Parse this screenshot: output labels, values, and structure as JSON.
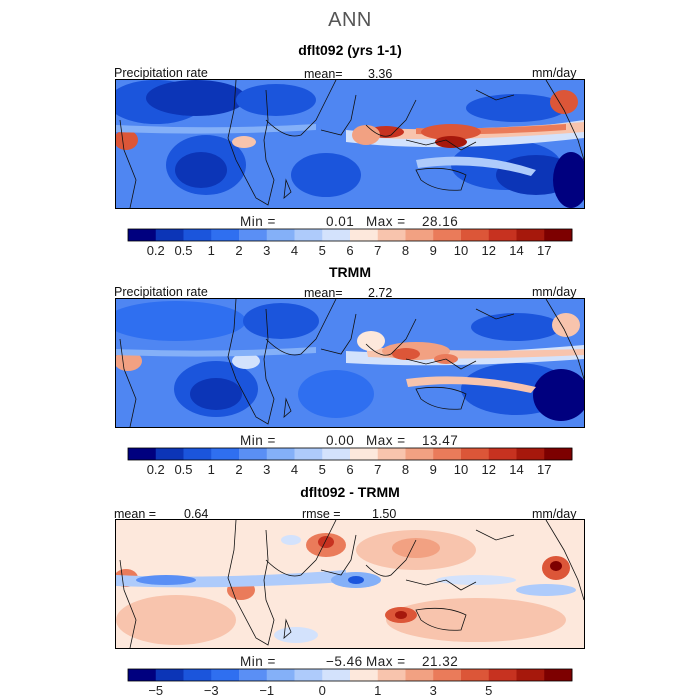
{
  "page": {
    "title": "ANN"
  },
  "panels": [
    {
      "title": "dflt092 (yrs 1-1)",
      "left_label": "Precipitation rate",
      "mid_label": "mean=",
      "mid_value": "3.36",
      "right_label": "mm/day",
      "min_label": "Min =",
      "min_value": "0.01",
      "max_label": "Max =",
      "max_value": "28.16",
      "colorbar": {
        "colors": [
          "#00007f",
          "#0c35b7",
          "#1b55dc",
          "#2f6ff0",
          "#5a8ff5",
          "#84b0f8",
          "#aecbfb",
          "#d3e2fc",
          "#fde8dc",
          "#f8c4ad",
          "#f2a182",
          "#ea7b5a",
          "#dc5638",
          "#c73220",
          "#a6180c",
          "#7d0000"
        ],
        "tick_labels": [
          "0.2",
          "0.5",
          "1",
          "2",
          "3",
          "4",
          "5",
          "6",
          "7",
          "8",
          "9",
          "10",
          "12",
          "14",
          "17"
        ]
      }
    },
    {
      "title": "TRMM",
      "left_label": "Precipitation rate",
      "mid_label": "mean=",
      "mid_value": "2.72",
      "right_label": "mm/day",
      "min_label": "Min =",
      "min_value": "0.00",
      "max_label": "Max =",
      "max_value": "13.47",
      "colorbar": {
        "colors": [
          "#00007f",
          "#0c35b7",
          "#1b55dc",
          "#2f6ff0",
          "#5a8ff5",
          "#84b0f8",
          "#aecbfb",
          "#d3e2fc",
          "#fde8dc",
          "#f8c4ad",
          "#f2a182",
          "#ea7b5a",
          "#dc5638",
          "#c73220",
          "#a6180c",
          "#7d0000"
        ],
        "tick_labels": [
          "0.2",
          "0.5",
          "1",
          "2",
          "3",
          "4",
          "5",
          "6",
          "7",
          "8",
          "9",
          "10",
          "12",
          "14",
          "17"
        ]
      }
    },
    {
      "title": "dflt092 - TRMM",
      "left_label": "mean =",
      "left_value": "0.64",
      "mid_label": "rmse =",
      "mid_value": "1.50",
      "right_label": "mm/day",
      "min_label": "Min =",
      "min_value": "−5.46",
      "max_label": "Max =",
      "max_value": "21.32",
      "colorbar": {
        "colors": [
          "#00007f",
          "#0c35b7",
          "#1b55dc",
          "#2f6ff0",
          "#5a8ff5",
          "#84b0f8",
          "#aecbfb",
          "#d3e2fc",
          "#fde8dc",
          "#f8c4ad",
          "#f2a182",
          "#ea7b5a",
          "#dc5638",
          "#c73220",
          "#a6180c",
          "#7d0000"
        ],
        "tick_labels": [
          "−5",
          "",
          "−3",
          "",
          "−1",
          "",
          "0",
          "",
          "1",
          "",
          "3",
          "",
          "5",
          ""
        ]
      }
    }
  ]
}
